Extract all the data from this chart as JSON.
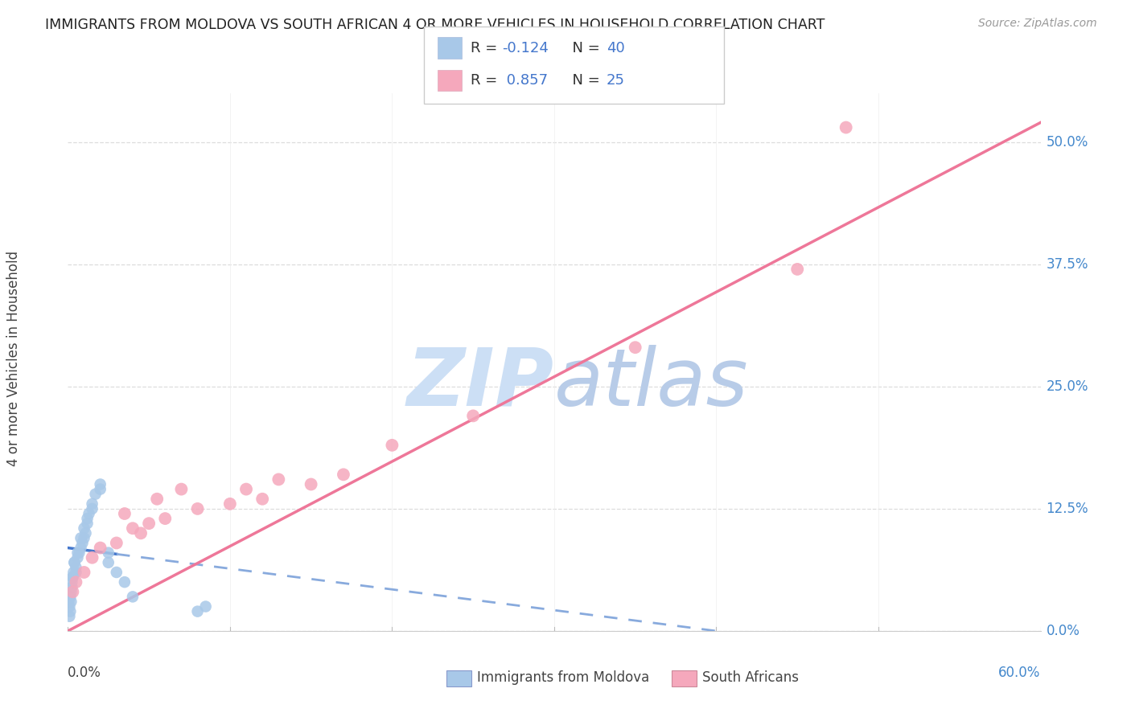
{
  "title": "IMMIGRANTS FROM MOLDOVA VS SOUTH AFRICAN 4 OR MORE VEHICLES IN HOUSEHOLD CORRELATION CHART",
  "source": "Source: ZipAtlas.com",
  "ylabel_label": "4 or more Vehicles in Household",
  "legend1_label": "Immigrants from Moldova",
  "legend2_label": "South Africans",
  "R1": -0.124,
  "N1": 40,
  "R2": 0.857,
  "N2": 25,
  "color1": "#a8c8e8",
  "color2": "#f5a8bc",
  "trendline1_solid_color": "#4477cc",
  "trendline1_dash_color": "#88aadd",
  "trendline2_color": "#ee7799",
  "watermark_zip_color": "#ccdff5",
  "watermark_atlas_color": "#b8cce8",
  "xmin": 0.0,
  "xmax": 60.0,
  "ymin": 0.0,
  "ymax": 55.0,
  "ytick_vals": [
    0.0,
    12.5,
    25.0,
    37.5,
    50.0
  ],
  "xtick_positions": [
    0,
    10,
    20,
    30,
    40,
    50,
    60
  ],
  "blue_scatter_x": [
    0.05,
    0.1,
    0.15,
    0.2,
    0.25,
    0.3,
    0.35,
    0.4,
    0.5,
    0.6,
    0.7,
    0.8,
    0.9,
    1.0,
    1.1,
    1.2,
    1.3,
    1.5,
    1.7,
    2.0,
    0.1,
    0.15,
    0.2,
    0.25,
    0.3,
    0.4,
    0.5,
    0.6,
    0.8,
    1.0,
    1.2,
    1.5,
    2.0,
    2.5,
    3.0,
    3.5,
    4.0,
    8.0,
    8.5,
    2.5
  ],
  "blue_scatter_y": [
    3.0,
    2.5,
    3.5,
    4.0,
    5.0,
    5.5,
    6.0,
    7.0,
    6.5,
    7.5,
    8.0,
    8.5,
    9.0,
    9.5,
    10.0,
    11.0,
    12.0,
    13.0,
    14.0,
    15.0,
    1.5,
    2.0,
    3.0,
    4.5,
    5.5,
    7.0,
    6.0,
    8.0,
    9.5,
    10.5,
    11.5,
    12.5,
    14.5,
    7.0,
    6.0,
    5.0,
    3.5,
    2.0,
    2.5,
    8.0
  ],
  "pink_scatter_x": [
    0.3,
    0.5,
    1.0,
    1.5,
    2.0,
    3.0,
    4.0,
    5.0,
    6.0,
    8.0,
    10.0,
    11.0,
    12.0,
    13.0,
    15.0,
    17.0,
    3.5,
    5.5,
    7.0,
    20.0,
    25.0,
    35.0,
    45.0,
    48.0,
    4.5
  ],
  "pink_scatter_y": [
    4.0,
    5.0,
    6.0,
    7.5,
    8.5,
    9.0,
    10.5,
    11.0,
    11.5,
    12.5,
    13.0,
    14.5,
    13.5,
    15.5,
    15.0,
    16.0,
    12.0,
    13.5,
    14.5,
    19.0,
    22.0,
    29.0,
    37.0,
    51.5,
    10.0
  ],
  "background_color": "#ffffff",
  "grid_color": "#dddddd",
  "axis_color": "#cccccc",
  "tick_color": "#4488cc",
  "text_color": "#444444",
  "title_color": "#222222"
}
